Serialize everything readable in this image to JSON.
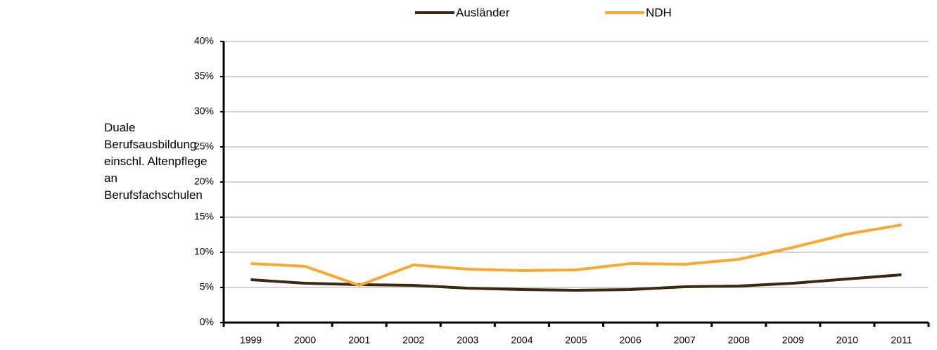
{
  "chart_data": {
    "type": "line",
    "y_label": "Duale Berufsausbildung einschl. Altenpflege an Berufsfachschulen",
    "categories": [
      "1999",
      "2000",
      "2001",
      "2002",
      "2003",
      "2004",
      "2005",
      "2006",
      "2007",
      "2008",
      "2009",
      "2010",
      "2011"
    ],
    "series": [
      {
        "name": "Ausländer",
        "color": "#3b2a10",
        "values": [
          6.1,
          5.6,
          5.4,
          5.3,
          4.9,
          4.7,
          4.6,
          4.7,
          5.1,
          5.2,
          5.6,
          6.2,
          6.8
        ]
      },
      {
        "name": "NDH",
        "color": "#f9a833",
        "values": [
          8.4,
          8.0,
          5.3,
          8.2,
          7.6,
          7.4,
          7.5,
          8.4,
          8.3,
          9.0,
          10.7,
          12.6,
          13.9
        ]
      }
    ],
    "ylim": [
      0,
      40
    ],
    "yticks": [
      {
        "value": 0,
        "label": "0%"
      },
      {
        "value": 5,
        "label": "5%"
      },
      {
        "value": 10,
        "label": "10%"
      },
      {
        "value": 15,
        "label": "15%"
      },
      {
        "value": 20,
        "label": "20%"
      },
      {
        "value": 25,
        "label": "25%"
      },
      {
        "value": 30,
        "label": "30%"
      },
      {
        "value": 35,
        "label": "35%"
      },
      {
        "value": 40,
        "label": "40%"
      }
    ],
    "grid": true,
    "legend": "top"
  }
}
